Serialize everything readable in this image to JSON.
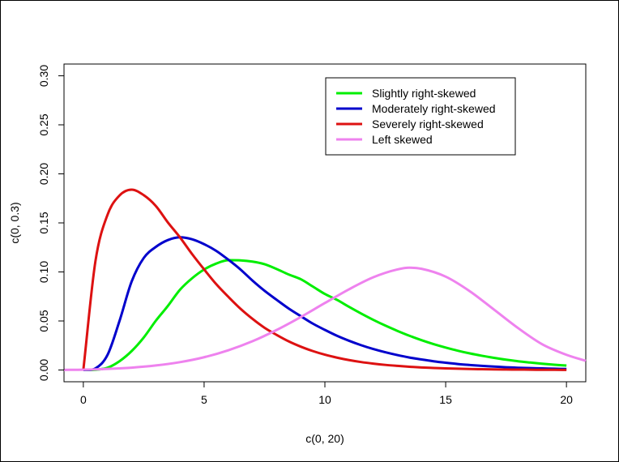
{
  "chart_data": {
    "type": "line",
    "xlabel": "c(0, 20)",
    "ylabel": "c(0, 0.3)",
    "xlim": [
      -0.8,
      20.8
    ],
    "ylim": [
      -0.012,
      0.312
    ],
    "x_ticks": [
      "0",
      "5",
      "10",
      "15",
      "20"
    ],
    "x_tick_values": [
      0,
      5,
      10,
      15,
      20
    ],
    "y_ticks": [
      "0.00",
      "0.05",
      "0.10",
      "0.15",
      "0.20",
      "0.25",
      "0.30"
    ],
    "y_tick_values": [
      0,
      0.05,
      0.1,
      0.15,
      0.2,
      0.25,
      0.3
    ],
    "legend_position": "top-right",
    "grid": false,
    "series": [
      {
        "name": "Slightly right-skewed",
        "color": "#00ee00",
        "x": [
          0,
          0.5,
          1,
          1.5,
          2,
          2.5,
          3,
          3.5,
          4,
          4.5,
          5,
          5.5,
          6,
          6.5,
          7,
          7.5,
          8,
          8.5,
          9,
          9.5,
          10,
          10.5,
          11,
          11.5,
          12,
          12.5,
          13,
          13.5,
          14,
          14.5,
          15,
          15.5,
          16,
          16.5,
          17,
          17.5,
          18,
          18.5,
          19,
          19.5,
          20
        ],
        "values": [
          0,
          0.0002,
          0.0023,
          0.009,
          0.0193,
          0.0331,
          0.0502,
          0.0653,
          0.0818,
          0.0935,
          0.1025,
          0.1085,
          0.112,
          0.1118,
          0.1105,
          0.1079,
          0.103,
          0.0974,
          0.0926,
          0.0851,
          0.0775,
          0.0715,
          0.0644,
          0.0576,
          0.0512,
          0.0453,
          0.0399,
          0.0349,
          0.0304,
          0.0264,
          0.0229,
          0.0197,
          0.0169,
          0.0145,
          0.0124,
          0.0105,
          0.0089,
          0.0076,
          0.0064,
          0.0054,
          0.0045
        ]
      },
      {
        "name": "Moderately right-skewed",
        "color": "#0000cc",
        "x": [
          0,
          0.5,
          1,
          1.5,
          2,
          2.5,
          3,
          3.5,
          4,
          4.5,
          5,
          5.5,
          6,
          6.5,
          7,
          7.5,
          8,
          8.5,
          9,
          9.5,
          10,
          10.5,
          11,
          11.5,
          12,
          12.5,
          13,
          13.5,
          14,
          14.5,
          15,
          15.5,
          16,
          16.5,
          17,
          17.5,
          18,
          18.5,
          19,
          19.5,
          20
        ],
        "values": [
          0,
          0.0016,
          0.0153,
          0.0502,
          0.0902,
          0.1142,
          0.1255,
          0.1325,
          0.1353,
          0.1333,
          0.1283,
          0.1215,
          0.1125,
          0.1026,
          0.0912,
          0.0808,
          0.0716,
          0.0627,
          0.0549,
          0.0473,
          0.0409,
          0.0349,
          0.0298,
          0.0253,
          0.0214,
          0.0181,
          0.0152,
          0.0127,
          0.0107,
          0.0089,
          0.0074,
          0.0061,
          0.0051,
          0.0042,
          0.0035,
          0.0028,
          0.0023,
          0.0019,
          0.0016,
          0.0013,
          0.001
        ]
      },
      {
        "name": "Severely right-skewed",
        "color": "#dd1111",
        "x": [
          0,
          0.5,
          1,
          1.5,
          2,
          2.5,
          3,
          3.5,
          4,
          4.5,
          5,
          5.5,
          6,
          6.5,
          7,
          7.5,
          8,
          8.5,
          9,
          9.5,
          10,
          10.5,
          11,
          11.5,
          12,
          12.5,
          13,
          13.5,
          14,
          14.5,
          15,
          15.5,
          16,
          16.5,
          17,
          17.5,
          18,
          18.5,
          19,
          19.5,
          20
        ],
        "values": [
          0,
          0.1108,
          0.1582,
          0.178,
          0.1839,
          0.1783,
          0.1673,
          0.1505,
          0.1353,
          0.1183,
          0.1026,
          0.0876,
          0.0747,
          0.0626,
          0.0522,
          0.0431,
          0.0358,
          0.0292,
          0.0238,
          0.0193,
          0.0156,
          0.0126,
          0.0101,
          0.0081,
          0.0065,
          0.0052,
          0.0042,
          0.0033,
          0.0026,
          0.0021,
          0.0016,
          0.0013,
          0.001,
          0.0008,
          0.0006,
          0.0005,
          0.0004,
          0.0003,
          0.0002,
          0.0002,
          0.0001
        ]
      },
      {
        "name": "Left skewed",
        "color": "#ee82ee",
        "x": [
          -0.8,
          0,
          1,
          2,
          3,
          4,
          5,
          6,
          7,
          8,
          9,
          10,
          11,
          12,
          13,
          13.5,
          14,
          15,
          16,
          17,
          18,
          19,
          20,
          20.8
        ],
        "values": [
          0.0001,
          0.0003,
          0.0011,
          0.0024,
          0.0046,
          0.008,
          0.013,
          0.0201,
          0.0293,
          0.0408,
          0.054,
          0.0683,
          0.0823,
          0.0945,
          0.1025,
          0.1043,
          0.1032,
          0.0952,
          0.0803,
          0.0616,
          0.0427,
          0.0262,
          0.0155,
          0.0093
        ]
      }
    ]
  }
}
